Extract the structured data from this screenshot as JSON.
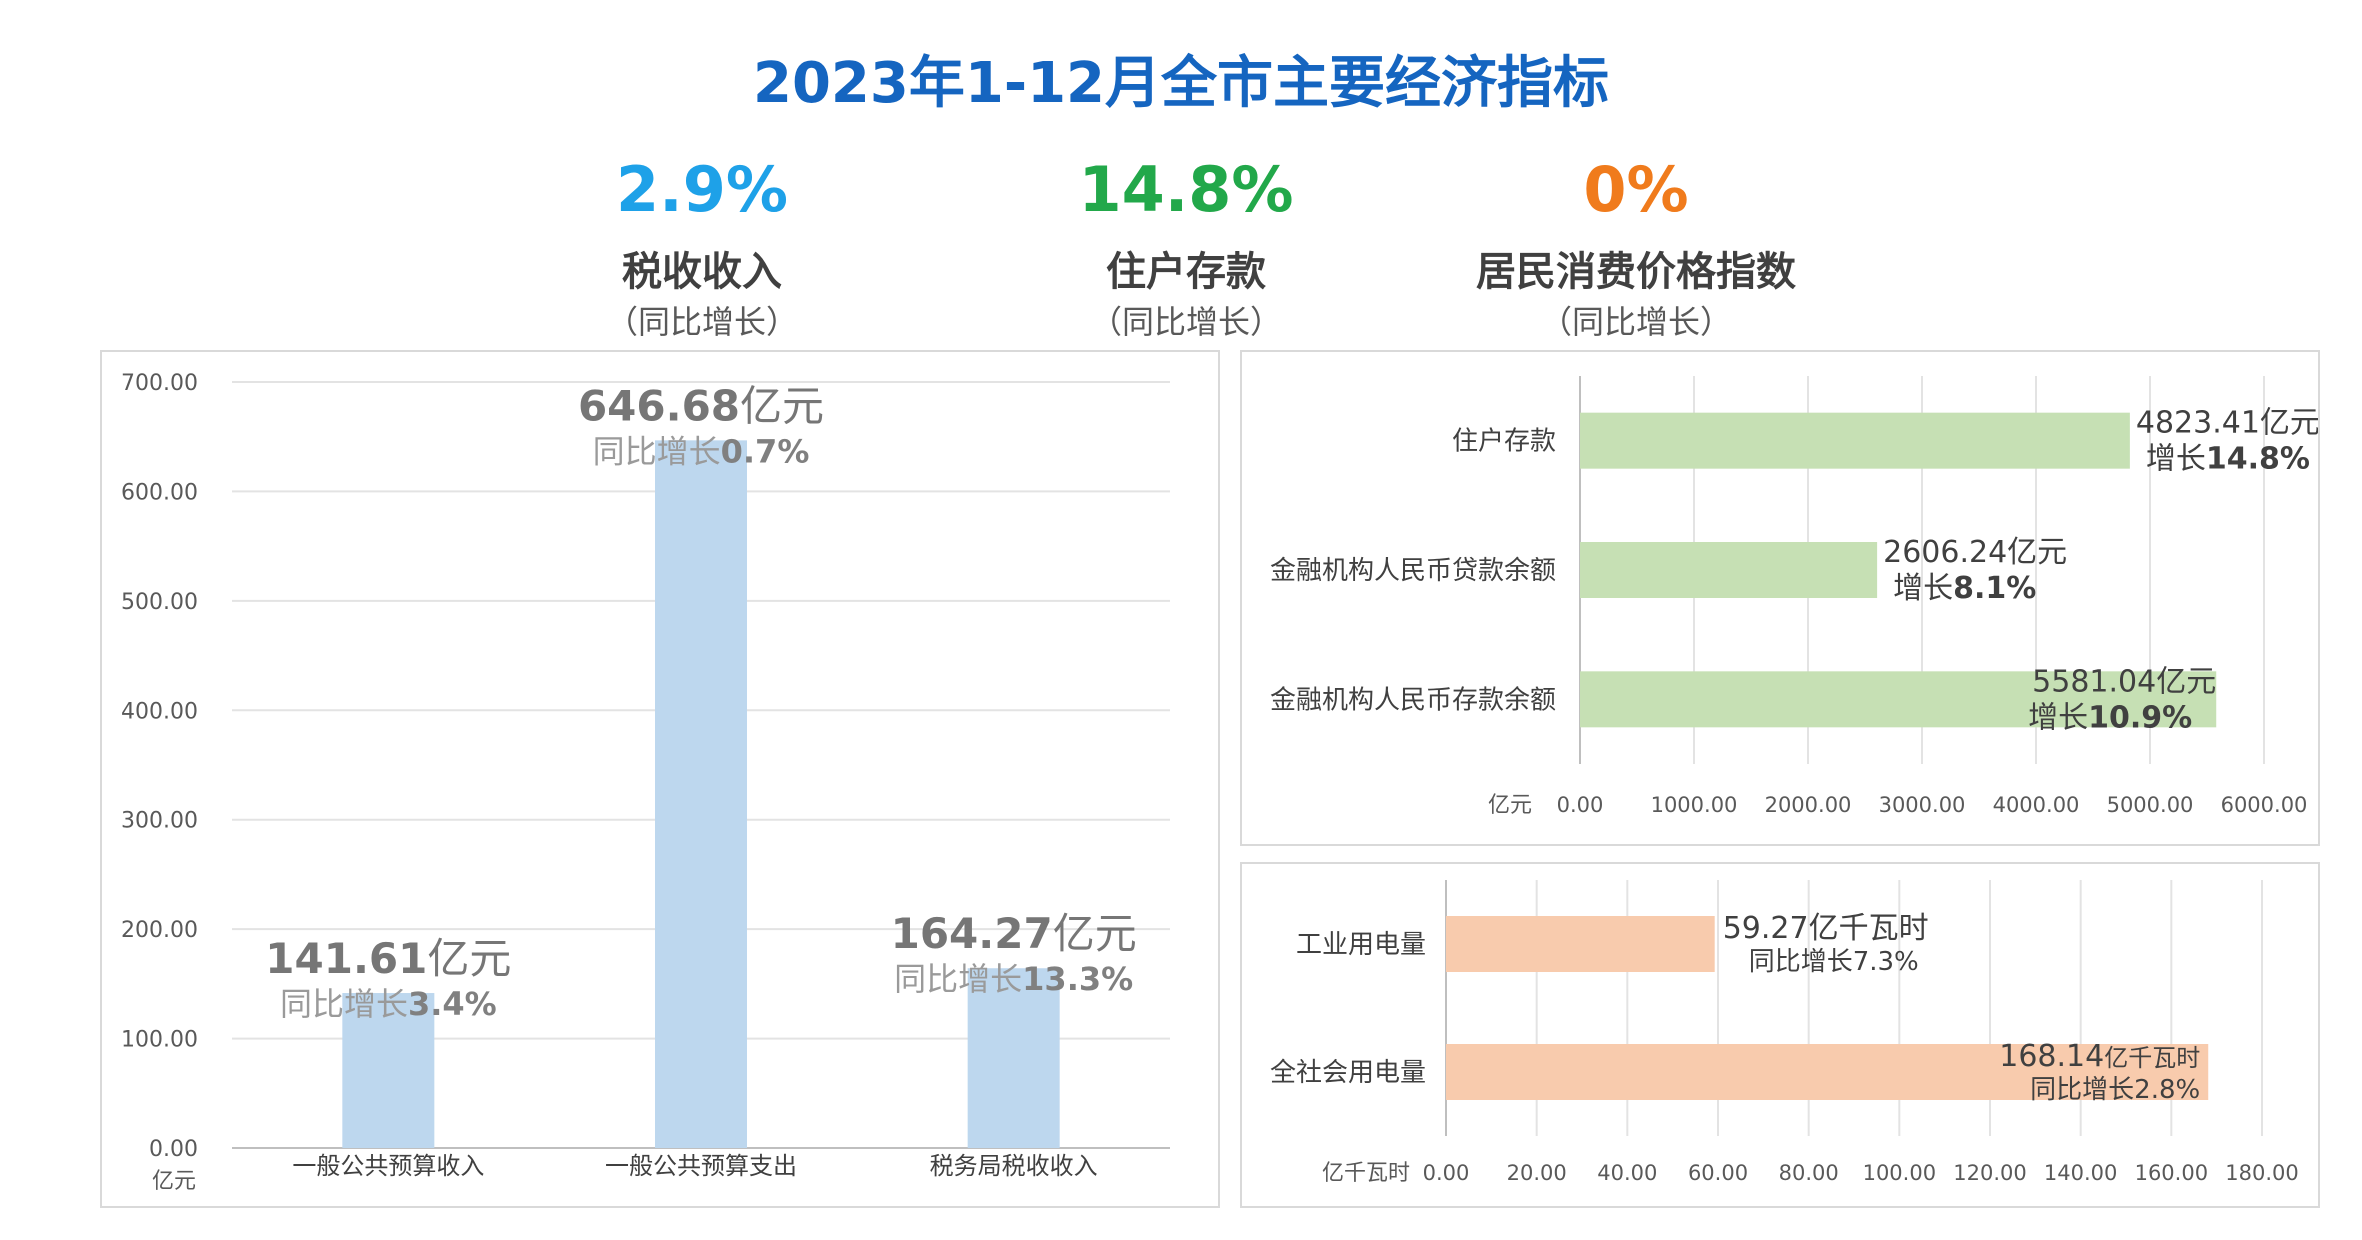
{
  "title": "2023年1-12月全市主要经济指标",
  "kpis": [
    {
      "value": "2.9%",
      "label": "税收收入",
      "sub": "（同比增长）",
      "color": "#1ea1e8"
    },
    {
      "value": "14.8%",
      "label": "住户存款",
      "sub": "（同比增长）",
      "color": "#22a84a"
    },
    {
      "value": "0%",
      "label": "居民消费价格指数",
      "sub": "（同比增长）",
      "color": "#f07b1c"
    }
  ],
  "chart_data": [
    {
      "type": "bar",
      "orientation": "vertical",
      "categories": [
        "一般公共预算收入",
        "一般公共预算支出",
        "税务局税收收入"
      ],
      "values": [
        141.61,
        646.68,
        164.27
      ],
      "value_labels": [
        "141.61亿元",
        "646.68亿元",
        "164.27亿元"
      ],
      "growth_labels": [
        {
          "prefix": "同比增长",
          "value": "3.4%"
        },
        {
          "prefix": "同比增长",
          "value": "0.7%"
        },
        {
          "prefix": "同比增长",
          "value": "13.3%"
        }
      ],
      "unit": "亿元",
      "ylim": [
        0,
        700
      ],
      "yticks": [
        "0.00",
        "100.00",
        "200.00",
        "300.00",
        "400.00",
        "500.00",
        "600.00",
        "700.00"
      ],
      "bar_color": "#bdd7ee",
      "grid": true
    },
    {
      "type": "bar",
      "orientation": "horizontal",
      "categories": [
        "住户存款",
        "金融机构人民币贷款余额",
        "金融机构人民币存款余额"
      ],
      "values": [
        4823.41,
        2606.24,
        5581.04
      ],
      "value_labels": [
        "4823.41亿元",
        "2606.24亿元",
        "5581.04亿元"
      ],
      "growth_labels": [
        {
          "prefix": "增长",
          "value": "14.8%"
        },
        {
          "prefix": "增长",
          "value": "8.1%"
        },
        {
          "prefix": "增长",
          "value": "10.9%"
        }
      ],
      "unit": "亿元",
      "xlim": [
        0,
        6000
      ],
      "xticks": [
        "0.00",
        "1000.00",
        "2000.00",
        "3000.00",
        "4000.00",
        "5000.00",
        "6000.00"
      ],
      "bar_color": "#c6e0b4",
      "grid": true
    },
    {
      "type": "bar",
      "orientation": "horizontal",
      "categories": [
        "工业用电量",
        "全社会用电量"
      ],
      "values": [
        59.27,
        168.14
      ],
      "value_labels": [
        [
          {
            "text": "59.27亿千瓦时",
            "small": false
          }
        ],
        [
          {
            "text": "168.14",
            "small": false
          },
          {
            "text": "亿千瓦时",
            "small": true
          }
        ]
      ],
      "growth_labels": [
        "同比增长7.3%",
        "同比增长2.8%"
      ],
      "unit": "亿千瓦时",
      "xlim": [
        0,
        180
      ],
      "xticks": [
        "0.00",
        "20.00",
        "40.00",
        "60.00",
        "80.00",
        "100.00",
        "120.00",
        "140.00",
        "160.00",
        "180.00"
      ],
      "bar_color": "#f8cbad",
      "grid": true
    }
  ]
}
